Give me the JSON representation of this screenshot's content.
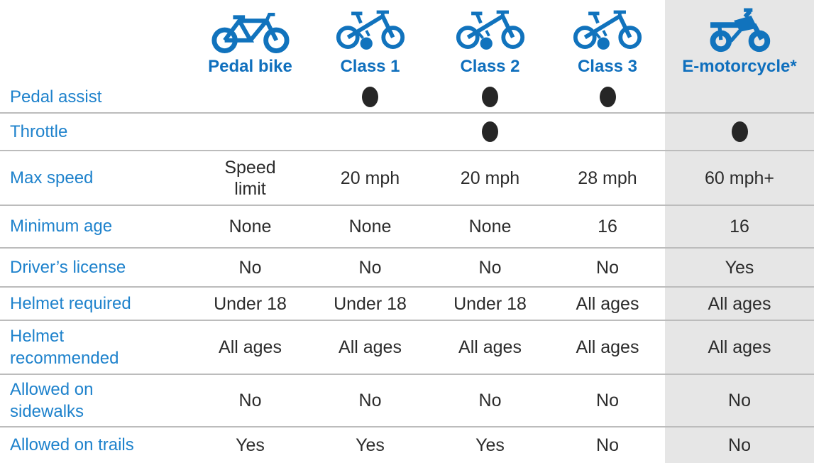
{
  "colors": {
    "accent_blue": "#1173bd",
    "header_blue": "#0f6fbd",
    "label_blue": "#1e82cc",
    "value_text": "#2b2b2b",
    "dot": "#262626",
    "highlight_bg": "#e6e6e6",
    "divider": "#bcbcbc",
    "background": "#ffffff"
  },
  "chart_data": {
    "type": "table",
    "dot_marker_meaning": "filled black dot = feature present",
    "columns": [
      {
        "label": "Pedal bike",
        "icon": "pedal-bike-icon",
        "highlight": false
      },
      {
        "label": "Class 1",
        "icon": "e-bike-icon",
        "highlight": false
      },
      {
        "label": "Class 2",
        "icon": "e-bike-icon",
        "highlight": false
      },
      {
        "label": "Class 3",
        "icon": "e-bike-icon",
        "highlight": false
      },
      {
        "label": "E-motorcycle*",
        "icon": "e-motorcycle-icon",
        "highlight": true
      }
    ],
    "rows": [
      {
        "label": "Pedal assist",
        "values": [
          null,
          "dot",
          "dot",
          "dot",
          null
        ]
      },
      {
        "label": "Throttle",
        "values": [
          null,
          null,
          "dot",
          null,
          "dot"
        ]
      },
      {
        "label": "Max speed",
        "values": [
          "Speed\nlimit",
          "20 mph",
          "20 mph",
          "28 mph",
          "60 mph+"
        ]
      },
      {
        "label": "Minimum age",
        "values": [
          "None",
          "None",
          "None",
          "16",
          "16"
        ]
      },
      {
        "label": "Driver’s license",
        "values": [
          "No",
          "No",
          "No",
          "No",
          "Yes"
        ]
      },
      {
        "label": "Helmet required",
        "values": [
          "Under 18",
          "Under 18",
          "Under 18",
          "All ages",
          "All ages"
        ]
      },
      {
        "label": "Helmet\nrecommended",
        "values": [
          "All ages",
          "All ages",
          "All ages",
          "All ages",
          "All ages"
        ]
      },
      {
        "label": "Allowed on\nsidewalks",
        "values": [
          "No",
          "No",
          "No",
          "No",
          "No"
        ]
      },
      {
        "label": "Allowed on trails",
        "values": [
          "Yes",
          "Yes",
          "Yes",
          "No",
          "No"
        ]
      }
    ]
  }
}
